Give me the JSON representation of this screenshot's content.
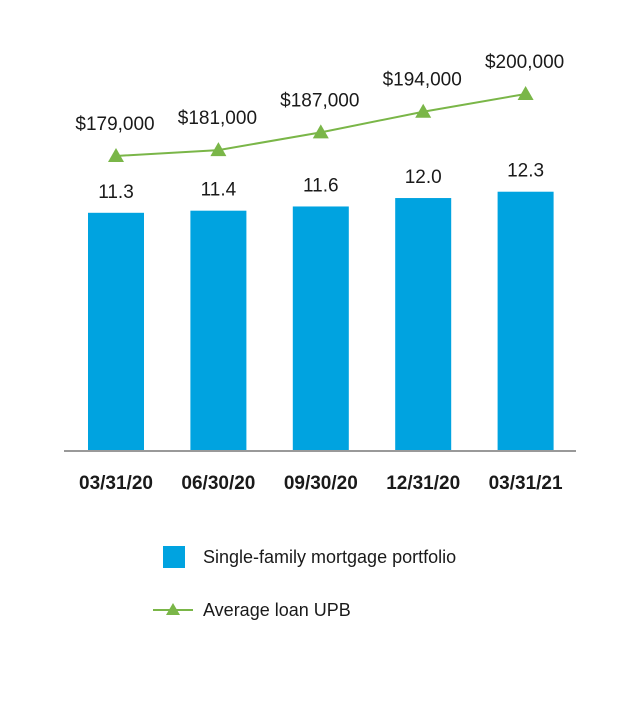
{
  "colors": {
    "bar": "#00a3e0",
    "line": "#7ab648",
    "axis": "#999999"
  },
  "chart_data": {
    "type": "bar",
    "categories": [
      "03/31/20",
      "06/30/20",
      "09/30/20",
      "12/31/20",
      "03/31/21"
    ],
    "series": [
      {
        "name": "Single-family mortgage portfolio",
        "type": "bar",
        "values": [
          11.3,
          11.4,
          11.6,
          12.0,
          12.3
        ],
        "labels": [
          "11.3",
          "11.4",
          "11.6",
          "12.0",
          "12.3"
        ]
      },
      {
        "name": "Average loan UPB",
        "type": "line",
        "marker": "triangle",
        "values": [
          179000,
          181000,
          187000,
          194000,
          200000
        ],
        "labels": [
          "$179,000",
          "$181,000",
          "$187,000",
          "$194,000",
          "$200,000"
        ]
      }
    ],
    "legend_position": "bottom"
  }
}
